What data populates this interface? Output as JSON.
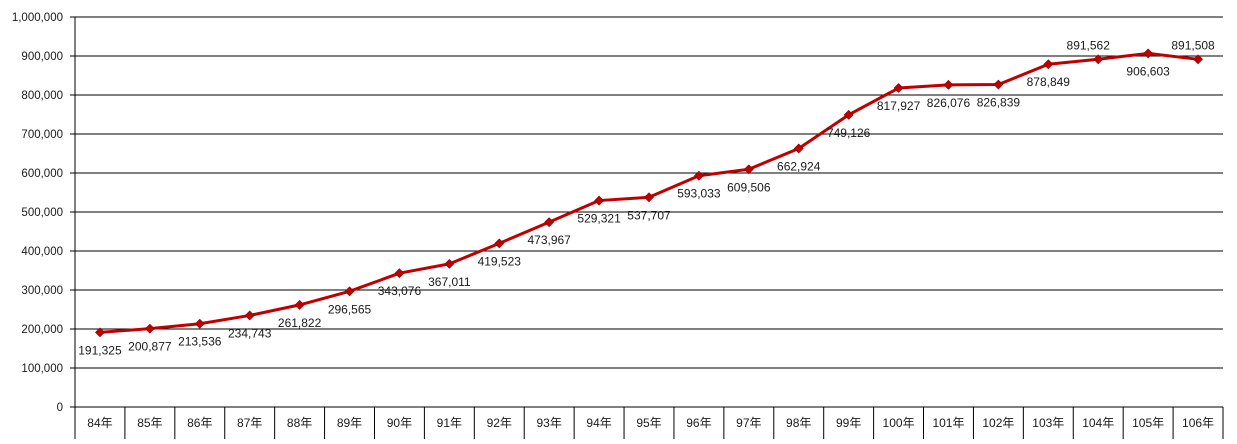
{
  "chart_data": {
    "type": "line",
    "title": "",
    "xlabel": "",
    "ylabel": "",
    "categories": [
      "84年",
      "85年",
      "86年",
      "87年",
      "88年",
      "89年",
      "90年",
      "91年",
      "92年",
      "93年",
      "94年",
      "95年",
      "96年",
      "97年",
      "98年",
      "99年",
      "100年",
      "101年",
      "102年",
      "103年",
      "104年",
      "105年",
      "106年"
    ],
    "series": [
      {
        "values": [
          191325,
          200877,
          213536,
          234743,
          261822,
          296565,
          343076,
          367011,
          419523,
          473967,
          529321,
          537707,
          593033,
          609506,
          662924,
          749126,
          817927,
          826076,
          826839,
          878849,
          891562,
          906603,
          891508
        ],
        "labels": [
          "191,325",
          "200,877",
          "213,536",
          "234,743",
          "261,822",
          "296,565",
          "343,076",
          "367,011",
          "419,523",
          "473,967",
          "529,321",
          "537,707",
          "593,033",
          "609,506",
          "662,924",
          "749,126",
          "817,927",
          "826,076",
          "826,839",
          "878,849",
          "891,562",
          "906,603",
          "891,508"
        ],
        "color": "#c00000",
        "marker": "diamond"
      }
    ],
    "ylim": [
      0,
      1000000
    ],
    "yticks": [
      "0",
      "100,000",
      "200,000",
      "300,000",
      "400,000",
      "500,000",
      "600,000",
      "700,000",
      "800,000",
      "900,000",
      "1,000,000"
    ],
    "grid": true,
    "legend": "none"
  }
}
